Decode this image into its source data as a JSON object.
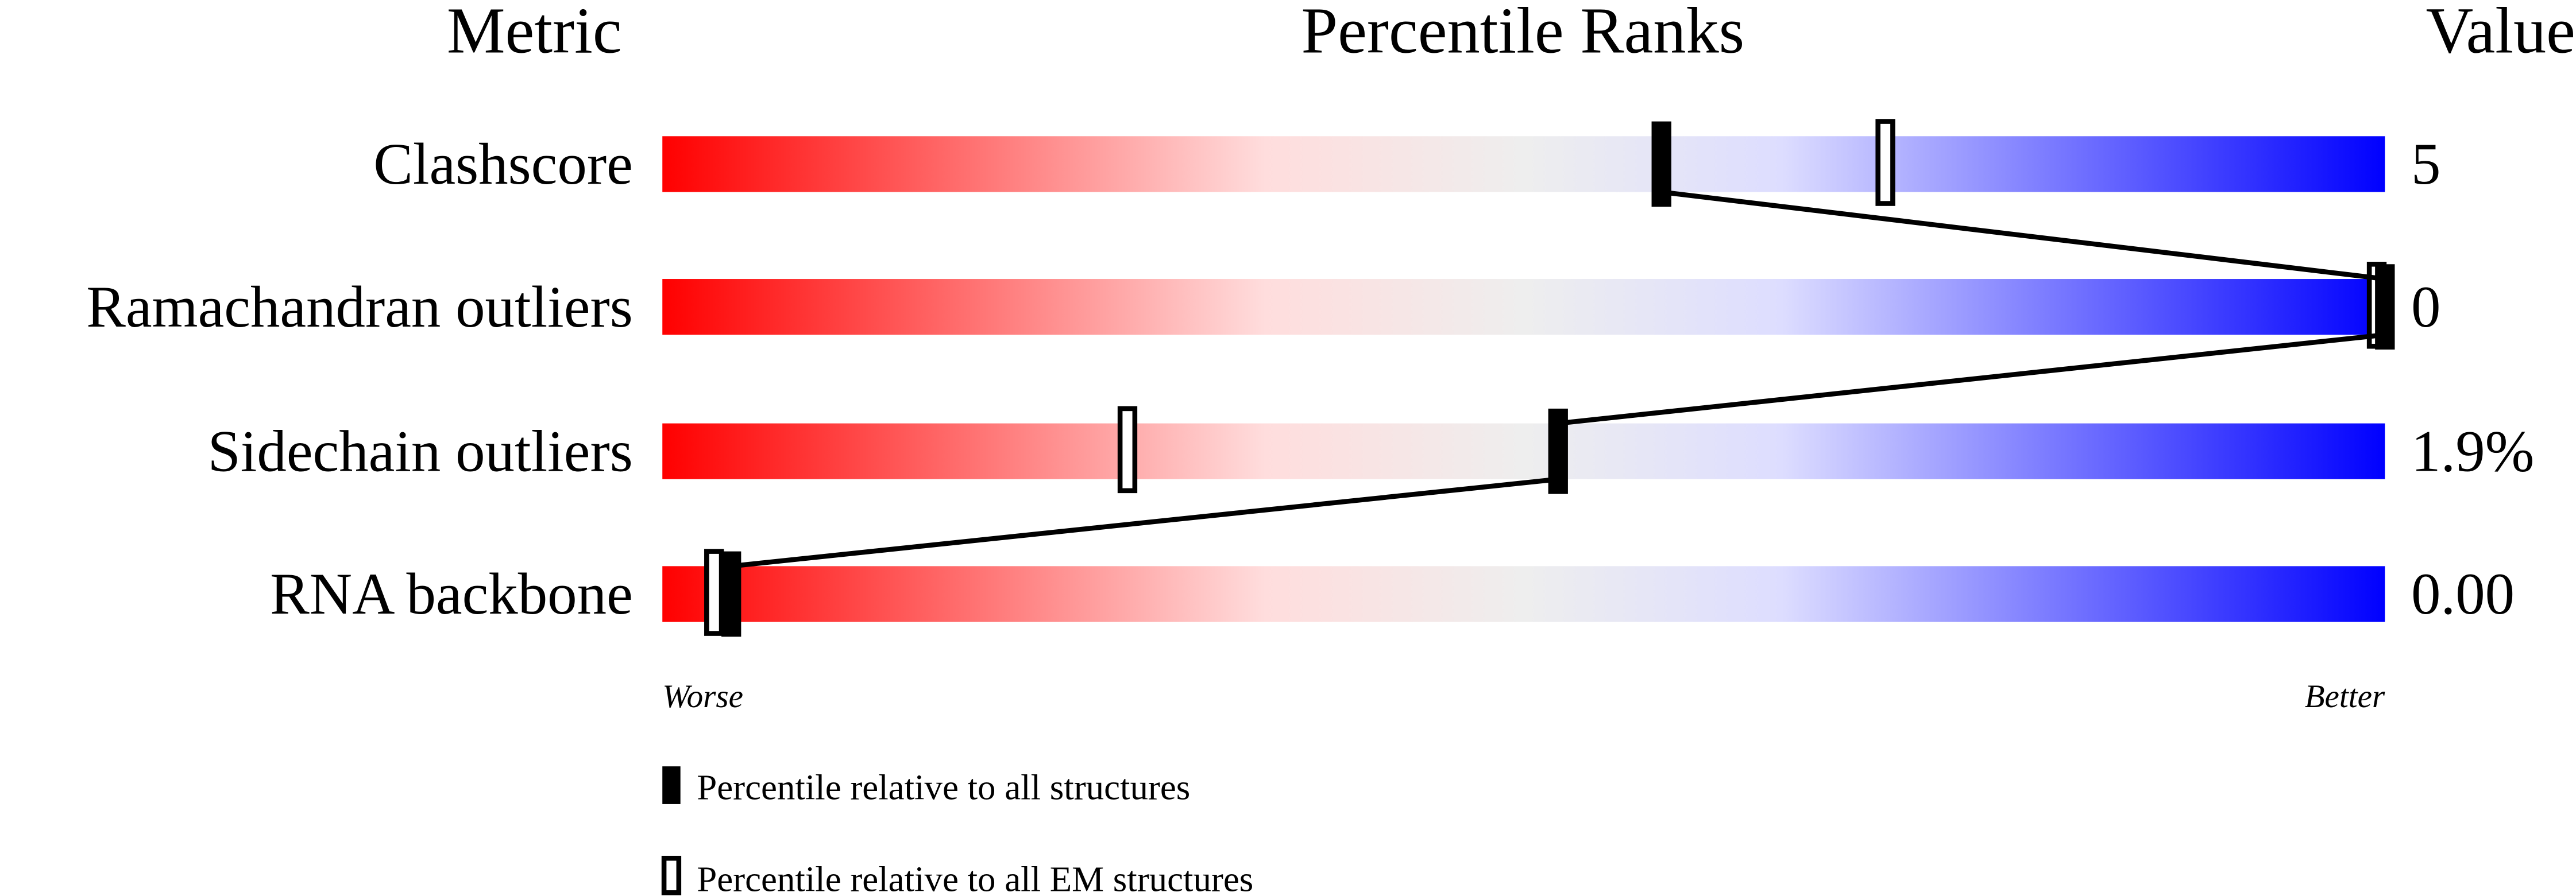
{
  "chart_data": {
    "type": "bar",
    "headers": {
      "metric": "Metric",
      "ranks": "Percentile Ranks",
      "value": "Value"
    },
    "xlim": [
      0,
      100
    ],
    "axis_labels": {
      "left": "Worse",
      "right": "Better"
    },
    "gradient_colors": [
      "#ff0000",
      "#ffdddd",
      "#eeeeee",
      "#ddddff",
      "#0000ff"
    ],
    "metrics": [
      {
        "label": "Clashscore",
        "value": "5",
        "percentile_all": 58,
        "percentile_em": 71
      },
      {
        "label": "Ramachandran outliers",
        "value": "0",
        "percentile_all": 100,
        "percentile_em": 100
      },
      {
        "label": "Sidechain outliers",
        "value": "1.9%",
        "percentile_all": 52,
        "percentile_em": 27
      },
      {
        "label": "RNA backbone",
        "value": "0.00",
        "percentile_all": 4,
        "percentile_em": 3
      }
    ],
    "legend": [
      {
        "label": "Percentile relative to all structures",
        "marker": "filled"
      },
      {
        "label": "Percentile relative to all EM structures",
        "marker": "hollow"
      }
    ],
    "legend_placement": "bottom"
  }
}
